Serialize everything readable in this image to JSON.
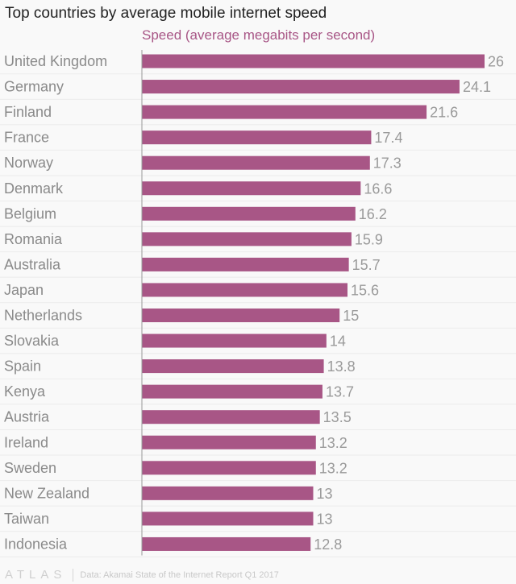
{
  "chart_data": {
    "type": "bar",
    "orientation": "horizontal",
    "title": "Top countries by average mobile internet speed",
    "series_label": "Speed (average megabits per second)",
    "categories": [
      "United Kingdom",
      "Germany",
      "Finland",
      "France",
      "Norway",
      "Denmark",
      "Belgium",
      "Romania",
      "Australia",
      "Japan",
      "Netherlands",
      "Slovakia",
      "Spain",
      "Kenya",
      "Austria",
      "Ireland",
      "Sweden",
      "New Zealand",
      "Taiwan",
      "Indonesia"
    ],
    "values": [
      26,
      24.1,
      21.6,
      17.4,
      17.3,
      16.6,
      16.2,
      15.9,
      15.7,
      15.6,
      15,
      14,
      13.8,
      13.7,
      13.5,
      13.2,
      13.2,
      13,
      13,
      12.8
    ],
    "xlim": [
      0,
      26
    ],
    "grid": true,
    "bar_color": "#a85686"
  },
  "footer": {
    "logo": "ATLAS",
    "source": "Data: Akamai State of the Internet Report Q1 2017"
  }
}
